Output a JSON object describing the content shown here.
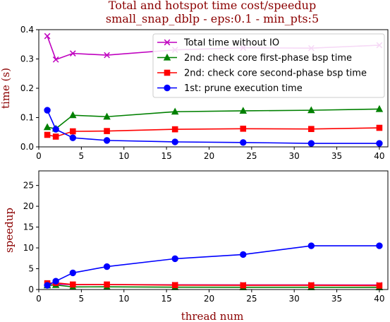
{
  "chart_data": [
    {
      "type": "line",
      "title": "Total and hotspot time cost/speedup",
      "subtitle": "small_snap_dblp - eps:0.1 - min_pts:5",
      "xlabel": "",
      "ylabel": "time (s)",
      "xlim": [
        0,
        41
      ],
      "ylim": [
        0,
        0.4
      ],
      "xticks": [
        0,
        5,
        10,
        15,
        20,
        25,
        30,
        35,
        40
      ],
      "yticks": [
        0.0,
        0.1,
        0.2,
        0.3,
        0.4
      ],
      "ytick_labels": [
        "0.0",
        "0.1",
        "0.2",
        "0.3",
        "0.4"
      ],
      "legend_position": "top-right",
      "grid": false,
      "x": [
        1,
        2,
        4,
        8,
        16,
        24,
        32,
        40
      ],
      "series": [
        {
          "name": "Total time without IO",
          "color": "#bf00bf",
          "marker": "x",
          "values": [
            0.378,
            0.298,
            0.319,
            0.313,
            0.331,
            0.338,
            0.337,
            0.347
          ]
        },
        {
          "name": "2nd: check core first-phase bsp time",
          "color": "#008000",
          "marker": "triangle",
          "values": [
            0.067,
            0.062,
            0.108,
            0.103,
            0.12,
            0.123,
            0.125,
            0.129
          ]
        },
        {
          "name": "2nd: check core second-phase bsp time",
          "color": "#ff0000",
          "marker": "square",
          "values": [
            0.041,
            0.035,
            0.053,
            0.054,
            0.06,
            0.062,
            0.061,
            0.065
          ]
        },
        {
          "name": "1st: prune execution time",
          "color": "#0000ff",
          "marker": "circle",
          "values": [
            0.125,
            0.06,
            0.031,
            0.022,
            0.017,
            0.015,
            0.012,
            0.012
          ]
        }
      ]
    },
    {
      "type": "line",
      "title": "",
      "xlabel": "thread num",
      "ylabel": "speedup",
      "xlim": [
        0,
        41
      ],
      "ylim": [
        0,
        28.5
      ],
      "xticks": [
        0,
        5,
        10,
        15,
        20,
        25,
        30,
        35,
        40
      ],
      "yticks": [
        0,
        5,
        10,
        15,
        20,
        25
      ],
      "ytick_labels": [
        "0",
        "5",
        "10",
        "15",
        "20",
        "25"
      ],
      "grid": false,
      "x": [
        1,
        2,
        4,
        8,
        16,
        24,
        32,
        40
      ],
      "series": [
        {
          "name": "Total time without IO",
          "color": "#bf00bf",
          "marker": "x",
          "values": [
            1.0,
            1.27,
            1.18,
            1.21,
            1.14,
            1.12,
            1.12,
            1.09
          ]
        },
        {
          "name": "2nd: check core first-phase bsp time",
          "color": "#008000",
          "marker": "triangle",
          "values": [
            1.0,
            1.08,
            0.62,
            0.65,
            0.56,
            0.54,
            0.54,
            0.52
          ]
        },
        {
          "name": "2nd: check core second-phase bsp time",
          "color": "#ff0000",
          "marker": "square",
          "values": [
            1.5,
            1.6,
            1.2,
            1.2,
            1.05,
            1.0,
            1.0,
            0.95
          ]
        },
        {
          "name": "1st: prune execution time",
          "color": "#0000ff",
          "marker": "circle",
          "values": [
            1.0,
            2.0,
            4.0,
            5.5,
            7.4,
            8.4,
            10.5,
            10.5
          ]
        }
      ]
    }
  ]
}
